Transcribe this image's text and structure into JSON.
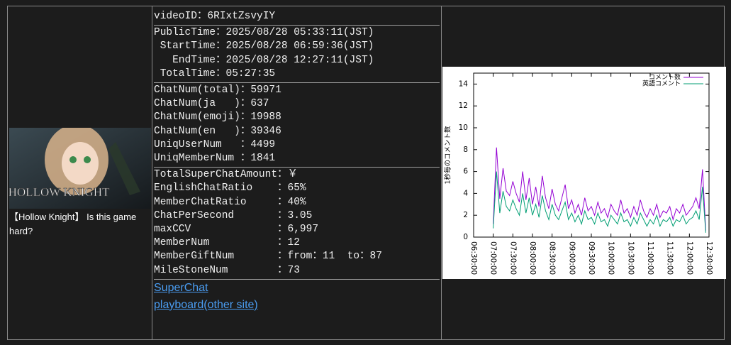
{
  "thumbnail": {
    "logo": "HOLLOW KNIGHT",
    "caption": "【Hollow Knight】 Is this game hard?"
  },
  "stats": {
    "sections": [
      {
        "align": "left",
        "rows": [
          {
            "label": "videoID：",
            "value": "6RIxtZsvyIY"
          }
        ]
      },
      {
        "align": "right",
        "rows": [
          {
            "label": "PublicTime：",
            "value": "2025/08/28 05:33:11(JST)"
          },
          {
            "label": "StartTime：",
            "value": "2025/08/28 06:59:36(JST)"
          },
          {
            "label": "EndTime：",
            "value": "2025/08/28 12:27:11(JST)"
          },
          {
            "label": "TotalTime：",
            "value": "05:27:35"
          }
        ]
      },
      {
        "align": "left",
        "rows": [
          {
            "label": "ChatNum(total)：",
            "value": "59971"
          },
          {
            "label": "ChatNum(ja   )：",
            "value": "637"
          },
          {
            "label": "ChatNum(emoji)：",
            "value": "19988"
          },
          {
            "label": "ChatNum(en   )：",
            "value": "39346"
          },
          {
            "label": "UniqUserNum   ：",
            "value": "4499"
          },
          {
            "label": "UniqMemberNum ：",
            "value": "1841"
          }
        ]
      },
      {
        "align": "left",
        "rows": [
          {
            "label": "TotalSuperChatAmount：",
            "value": "￥"
          },
          {
            "label": "EnglishChatRatio    ：",
            "value": "65%"
          },
          {
            "label": "MemberChatRatio     ：",
            "value": "40%"
          },
          {
            "label": "ChatPerSecond       ：",
            "value": "3.05"
          },
          {
            "label": "maxCCV              ：",
            "value": "6,997"
          },
          {
            "label": "MemberNum           ：",
            "value": "12"
          },
          {
            "label": "MemberGiftNum       ：",
            "value": "from：11  to：87"
          },
          {
            "label": "MileStoneNum        ：",
            "value": "73"
          }
        ]
      }
    ],
    "links": [
      "SuperChat",
      "playboard(other site)"
    ]
  },
  "chart_data": {
    "type": "line",
    "y_label": "1秒毎のコメント数",
    "legend": "top-right",
    "x": [
      420,
      425,
      430,
      435,
      440,
      445,
      450,
      455,
      460,
      465,
      470,
      475,
      480,
      485,
      490,
      495,
      500,
      505,
      510,
      515,
      520,
      525,
      530,
      535,
      540,
      545,
      550,
      555,
      560,
      565,
      570,
      575,
      580,
      585,
      590,
      595,
      600,
      605,
      610,
      615,
      620,
      625,
      630,
      635,
      640,
      645,
      650,
      655,
      660,
      665,
      670,
      675,
      680,
      685,
      690,
      695,
      700,
      705,
      710,
      715,
      720,
      725,
      730,
      735,
      740,
      745
    ],
    "xlim": [
      390,
      750
    ],
    "xticks": [
      {
        "value": 390,
        "label": "06:30:00"
      },
      {
        "value": 420,
        "label": "07:00:00"
      },
      {
        "value": 450,
        "label": "07:30:00"
      },
      {
        "value": 480,
        "label": "08:00:00"
      },
      {
        "value": 510,
        "label": "08:30:00"
      },
      {
        "value": 540,
        "label": "09:00:00"
      },
      {
        "value": 570,
        "label": "09:30:00"
      },
      {
        "value": 600,
        "label": "10:00:00"
      },
      {
        "value": 630,
        "label": "10:30:00"
      },
      {
        "value": 660,
        "label": "11:00:00"
      },
      {
        "value": 690,
        "label": "11:30:00"
      },
      {
        "value": 720,
        "label": "12:00:00"
      },
      {
        "value": 750,
        "label": "12:30:00"
      }
    ],
    "ylim": [
      0,
      15
    ],
    "yticks": [
      0,
      2,
      4,
      6,
      8,
      10,
      12,
      14
    ],
    "series": [
      {
        "name": "コメント数",
        "color": "#9400d3",
        "values": [
          1.2,
          8.2,
          3.5,
          6.3,
          4.2,
          3.8,
          5.1,
          4.0,
          3.2,
          6.0,
          3.4,
          5.4,
          3.0,
          4.6,
          2.8,
          5.6,
          3.6,
          2.6,
          4.4,
          3.0,
          2.4,
          3.6,
          4.8,
          2.6,
          3.4,
          2.2,
          3.0,
          2.0,
          3.6,
          2.4,
          2.8,
          2.0,
          3.2,
          2.2,
          2.6,
          1.8,
          3.0,
          2.4,
          2.0,
          3.4,
          2.2,
          2.6,
          1.8,
          2.8,
          2.0,
          3.4,
          2.4,
          1.8,
          2.6,
          2.0,
          3.0,
          1.8,
          2.4,
          2.2,
          2.8,
          1.6,
          2.6,
          2.2,
          3.0,
          2.0,
          2.4,
          2.8,
          3.6,
          2.6,
          6.2,
          0.6
        ]
      },
      {
        "name": "英語コメント",
        "color": "#009e73",
        "values": [
          0.8,
          6.0,
          2.2,
          4.2,
          2.8,
          2.4,
          3.4,
          2.6,
          2.0,
          4.0,
          2.2,
          3.6,
          2.0,
          3.0,
          1.8,
          3.8,
          2.4,
          1.6,
          3.0,
          2.0,
          1.6,
          2.4,
          3.2,
          1.6,
          2.2,
          1.4,
          2.0,
          1.2,
          2.4,
          1.6,
          1.8,
          1.2,
          2.2,
          1.4,
          1.6,
          1.0,
          2.0,
          1.6,
          1.2,
          2.2,
          1.4,
          1.6,
          1.0,
          1.8,
          1.2,
          2.2,
          1.6,
          1.0,
          1.6,
          1.2,
          2.0,
          1.0,
          1.6,
          1.4,
          1.8,
          1.0,
          1.6,
          1.4,
          2.0,
          1.2,
          1.6,
          1.8,
          2.4,
          1.6,
          4.6,
          0.4
        ]
      }
    ]
  }
}
